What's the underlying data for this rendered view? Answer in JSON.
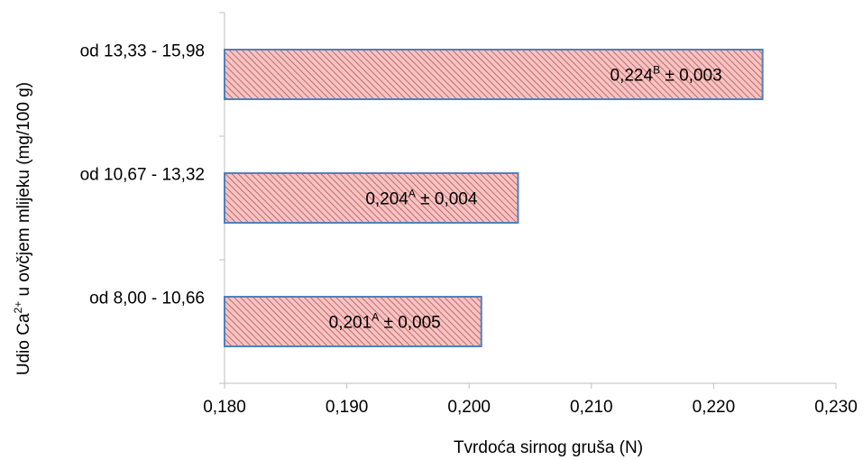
{
  "chart_data": {
    "type": "bar",
    "orientation": "horizontal",
    "categories": [
      "od 8,00 - 10,66",
      "od 10,67 - 13,32",
      "od 13,33 - 15,98"
    ],
    "values": [
      0.201,
      0.204,
      0.224
    ],
    "data_labels": [
      {
        "value": "0,201",
        "superscript": "A",
        "error": "± 0,005"
      },
      {
        "value": "0,204",
        "superscript": "A",
        "error": "± 0,004"
      },
      {
        "value": "0,224",
        "superscript": "B",
        "error": "± 0,003"
      }
    ],
    "xlim": [
      0.18,
      0.23
    ],
    "x_ticks": [
      0.18,
      0.19,
      0.2,
      0.21,
      0.22,
      0.23
    ],
    "x_tick_labels": [
      "0,180",
      "0,190",
      "0,200",
      "0,210",
      "0,220",
      "0,230"
    ],
    "xlabel": "Tvrdoća sirnog gruša (N)",
    "ylabel": {
      "before": "Udio Ca",
      "superscript": "2+",
      "after": "  u ovčjem mlijeku (mg/100 g)"
    },
    "grid": false,
    "legend": "none",
    "colors": {
      "bar_fill": "#f4c4c4",
      "bar_hatch": "#c0504d",
      "bar_border": "#4f81bd",
      "axis": "#bfbfbf"
    }
  }
}
